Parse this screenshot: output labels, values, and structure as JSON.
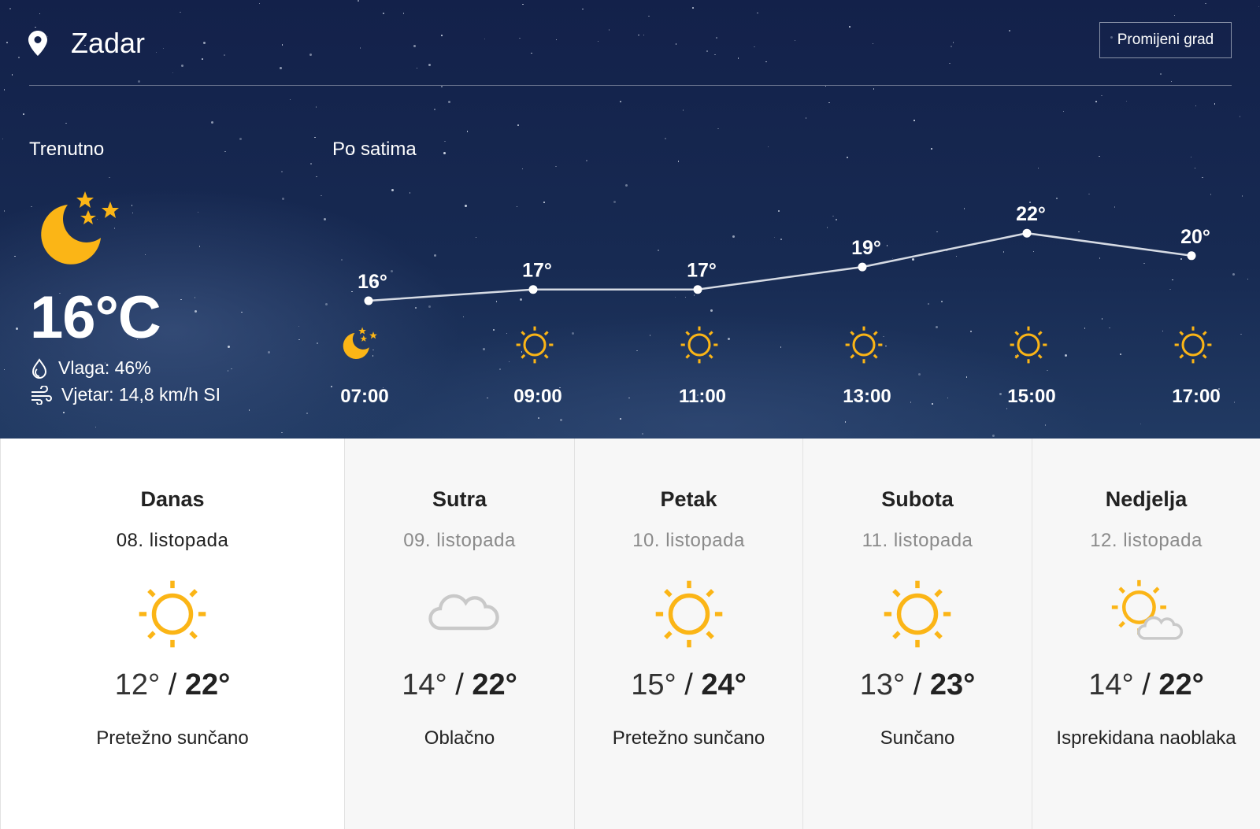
{
  "header": {
    "city": "Zadar",
    "change_city_label": "Promijeni grad"
  },
  "current": {
    "section_label": "Trenutno",
    "icon": "moon-stars-icon",
    "temperature": "16°C",
    "humidity": "Vlaga: 46%",
    "wind": "Vjetar: 14,8 km/h SI"
  },
  "hourly": {
    "section_label": "Po satima",
    "items": [
      {
        "time": "07:00",
        "temp": 16,
        "label": "16°",
        "icon": "moon-stars-icon"
      },
      {
        "time": "09:00",
        "temp": 17,
        "label": "17°",
        "icon": "sun-icon"
      },
      {
        "time": "11:00",
        "temp": 17,
        "label": "17°",
        "icon": "sun-icon"
      },
      {
        "time": "13:00",
        "temp": 19,
        "label": "19°",
        "icon": "sun-icon"
      },
      {
        "time": "15:00",
        "temp": 22,
        "label": "22°",
        "icon": "sun-icon"
      },
      {
        "time": "17:00",
        "temp": 20,
        "label": "20°",
        "icon": "sun-icon"
      }
    ]
  },
  "daily": [
    {
      "name": "Danas",
      "date": "08. listopada",
      "icon": "sun-icon",
      "low": "12°",
      "high": "22°",
      "condition": "Pretežno sunčano"
    },
    {
      "name": "Sutra",
      "date": "09. listopada",
      "icon": "cloud-icon",
      "low": "14°",
      "high": "22°",
      "condition": "Oblačno"
    },
    {
      "name": "Petak",
      "date": "10. listopada",
      "icon": "sun-icon",
      "low": "15°",
      "high": "24°",
      "condition": "Pretežno sunčano"
    },
    {
      "name": "Subota",
      "date": "11. listopada",
      "icon": "sun-icon",
      "low": "13°",
      "high": "23°",
      "condition": "Sunčano"
    },
    {
      "name": "Nedjelja",
      "date": "12. listopada",
      "icon": "sun-cloud-icon",
      "low": "14°",
      "high": "22°",
      "condition": "Isprekidana naoblaka"
    }
  ],
  "colors": {
    "accent": "#fbb516",
    "background": "#13214a",
    "card": "#f7f7f7",
    "cloud": "#c9c9c9"
  }
}
